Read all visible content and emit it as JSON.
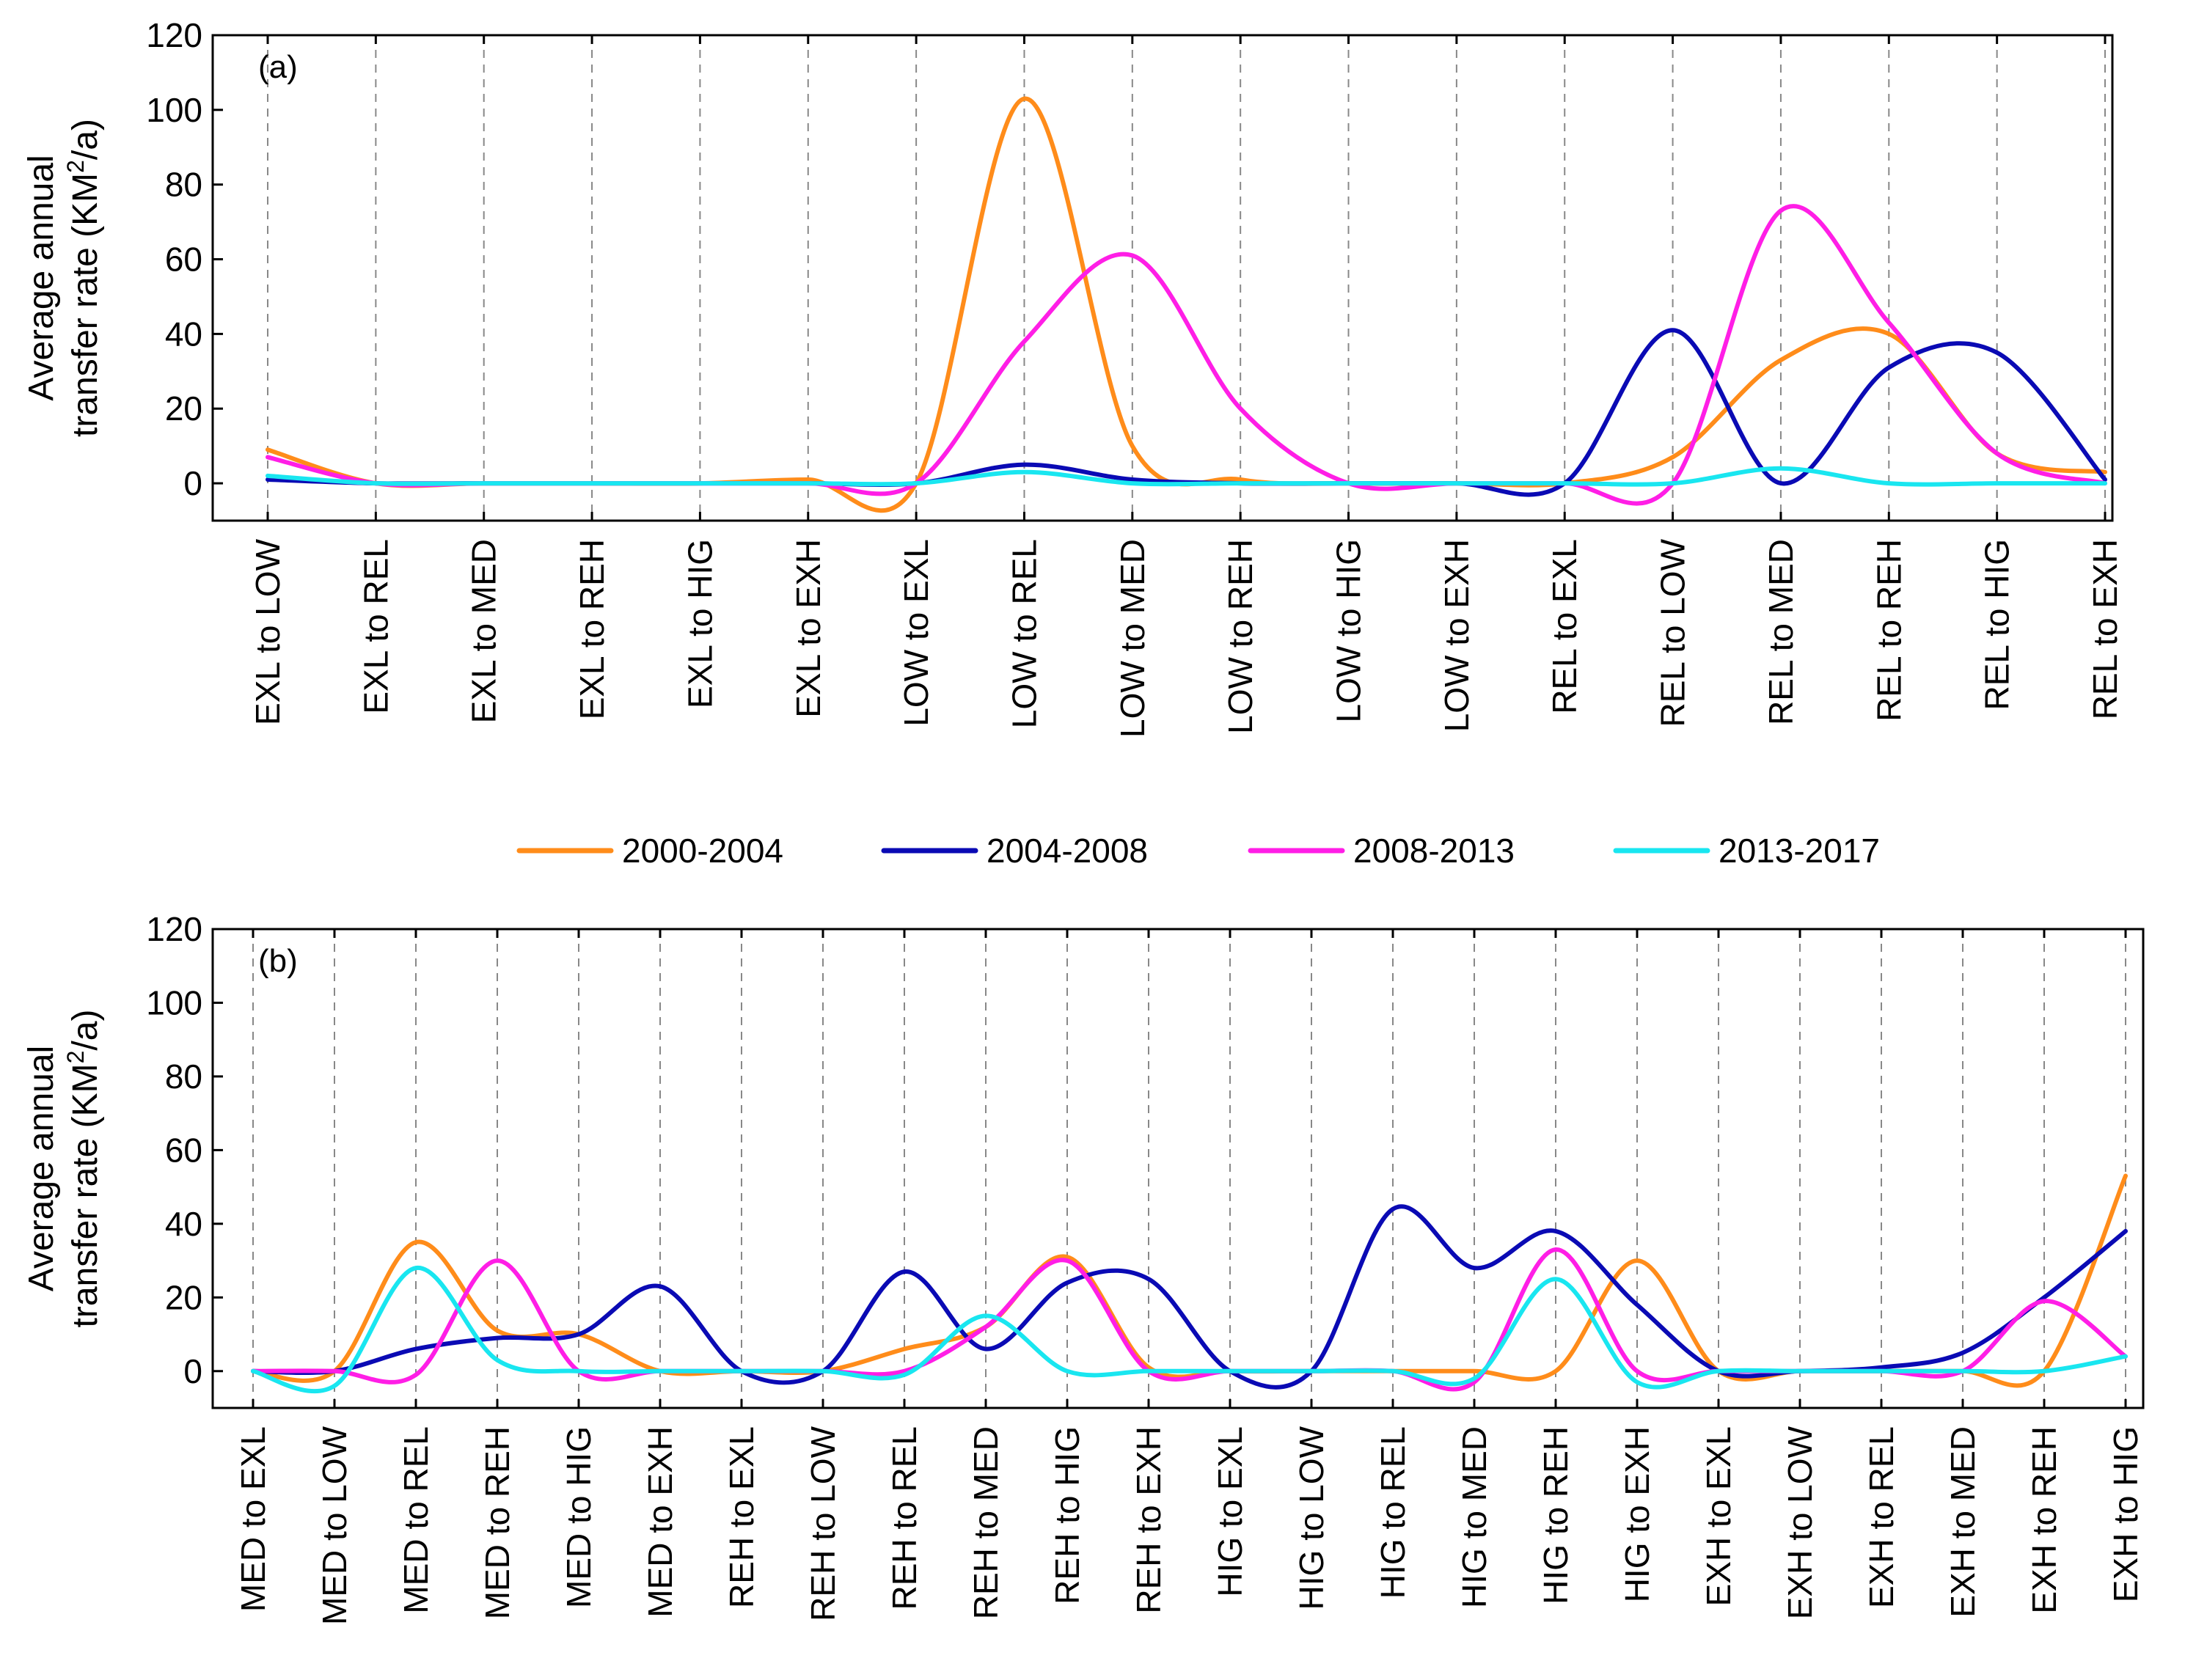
{
  "chart_data": [
    {
      "type": "line",
      "panel_label": "(a)",
      "ylabel_line1": "Average annual",
      "ylabel_line2_prefix": "transfer rate (KM",
      "ylabel_line2_sup": "2",
      "ylabel_line2_suffix": "/a)",
      "ylim": [
        -10,
        120
      ],
      "yticks": [
        "0",
        "20",
        "40",
        "60",
        "80",
        "100",
        "120"
      ],
      "grid": "vertical dashed",
      "categories": [
        "EXL to LOW",
        "EXL to REL",
        "EXL to MED",
        "EXL to REH",
        "EXL to HIG",
        "EXL to EXH",
        "LOW to EXL",
        "LOW to REL",
        "LOW to MED",
        "LOW to REH",
        "LOW to HIG",
        "LOW to EXH",
        "REL to EXL",
        "REL to LOW",
        "REL to MED",
        "REL to REH",
        "REL to HIG",
        "REL to EXH"
      ],
      "series": [
        {
          "name": "2000-2004",
          "values": [
            9,
            0,
            0,
            0,
            0,
            1,
            0,
            103,
            10,
            1,
            0,
            0,
            0,
            7,
            33,
            40,
            8,
            3
          ]
        },
        {
          "name": "2004-2008",
          "values": [
            1,
            0,
            0,
            0,
            0,
            0,
            0,
            5,
            1,
            0,
            0,
            0,
            0,
            41,
            0,
            31,
            35,
            1
          ]
        },
        {
          "name": "2008-2013",
          "values": [
            7,
            0,
            0,
            0,
            0,
            0,
            0,
            38,
            61,
            20,
            0,
            0,
            0,
            0,
            73,
            43,
            8,
            0
          ]
        },
        {
          "name": "2013-2017",
          "values": [
            2,
            0,
            0,
            0,
            0,
            0,
            0,
            3,
            0,
            0,
            0,
            0,
            0,
            0,
            4,
            0,
            0,
            0
          ]
        }
      ]
    },
    {
      "type": "line",
      "panel_label": "(b)",
      "ylabel_line1": "Average annual",
      "ylabel_line2_prefix": "transfer rate (KM",
      "ylabel_line2_sup": "2",
      "ylabel_line2_suffix": "/a)",
      "ylim": [
        -10,
        120
      ],
      "yticks": [
        "0",
        "20",
        "40",
        "60",
        "80",
        "100",
        "120"
      ],
      "grid": "vertical dashed",
      "categories": [
        "MED to EXL",
        "MED to LOW",
        "MED to REL",
        "MED to REH",
        "MED to HIG",
        "MED to EXH",
        "REH to EXL",
        "REH to LOW",
        "REH to REL",
        "REH to MED",
        "REH to HIG",
        "REH to EXH",
        "HIG to EXL",
        "HIG to LOW",
        "HIG to REL",
        "HIG to MED",
        "HIG to REH",
        "HIG to EXH",
        "EXH to EXL",
        "EXH to LOW",
        "EXH to REL",
        "EXH to MED",
        "EXH to REH",
        "EXH to HIG"
      ],
      "series": [
        {
          "name": "2000-2004",
          "values": [
            0,
            0,
            35,
            11,
            10,
            0,
            0,
            0,
            6,
            12,
            31,
            1,
            0,
            0,
            0,
            0,
            0,
            30,
            0,
            0,
            0,
            0,
            0,
            53
          ]
        },
        {
          "name": "2004-2008",
          "values": [
            0,
            0,
            6,
            9,
            10,
            23,
            0,
            0,
            27,
            6,
            24,
            25,
            0,
            0,
            44,
            28,
            38,
            18,
            0,
            0,
            1,
            5,
            20,
            38
          ]
        },
        {
          "name": "2008-2013",
          "values": [
            0,
            0,
            -1,
            30,
            0,
            0,
            0,
            0,
            0,
            12,
            30,
            0,
            0,
            0,
            0,
            -3,
            33,
            0,
            0,
            0,
            0,
            0,
            19,
            4
          ]
        },
        {
          "name": "2013-2017",
          "values": [
            0,
            -4,
            28,
            3,
            0,
            0,
            0,
            0,
            -1,
            15,
            0,
            0,
            0,
            0,
            0,
            -2,
            25,
            -3,
            0,
            0,
            0,
            0,
            0,
            4
          ]
        }
      ]
    }
  ],
  "legend": {
    "entries": [
      "2000-2004",
      "2004-2008",
      "2008-2013",
      "2013-2017"
    ],
    "colors": [
      "#ff8c1a",
      "#0a0ab4",
      "#ff1ee6",
      "#19e6f0"
    ]
  }
}
